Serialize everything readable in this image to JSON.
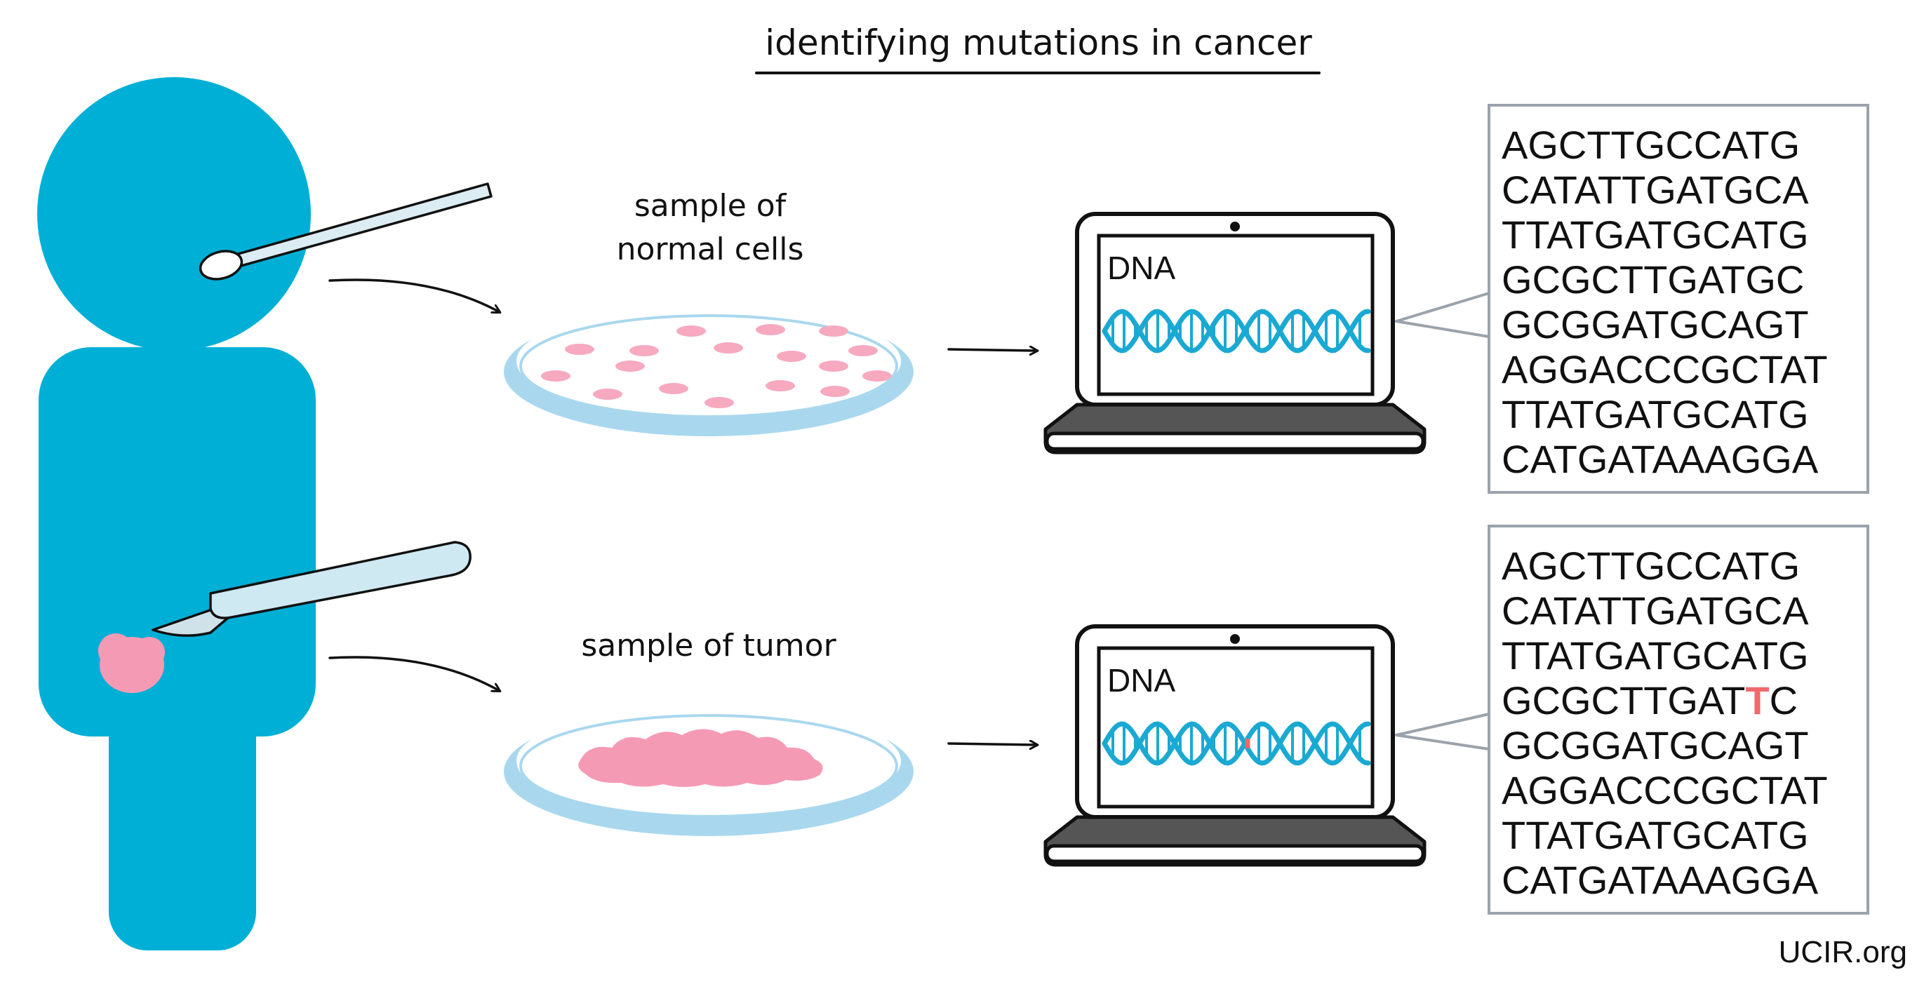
{
  "title": "identifying mutations in cancer",
  "normal": {
    "sample_label_line1": "sample of",
    "sample_label_line2": "normal cells",
    "screen_label": "DNA",
    "sequence": [
      "AGCTTGCCATG",
      "CATATTGATGCA",
      "TTATGATGCATG",
      "GCGCTTGATGC",
      "GCGGATGCAGT",
      "AGGACCCGCTAT",
      "TTATGATGCATG",
      "CATGATAAAGGA"
    ]
  },
  "tumor": {
    "sample_label": "sample of tumor",
    "screen_label": "DNA",
    "sequence": [
      "AGCTTGCCATG",
      "CATATTGATGCA",
      "TTATGATGCATG",
      "GCGCTTGATTC",
      "GCGGATGCAGT",
      "AGGACCCGCTAT",
      "TTATGATGCATG",
      "CATGATAAAGGA"
    ],
    "mutation_line_prefix": "GCGCTTGAT",
    "mutation_base": "T",
    "mutation_line_suffix": "C"
  },
  "credit": "UCIR.org",
  "colors": {
    "person": "#00afd6",
    "dish": "#a9d8ee",
    "cell": "#f6a9bf",
    "tumor": "#f59ab5",
    "dna": "#1aa9d2",
    "mutation": "#ef6a6a",
    "laptop_base": "#555555",
    "box_border": "#9aa3ab",
    "tool": "#cfe9f3"
  }
}
